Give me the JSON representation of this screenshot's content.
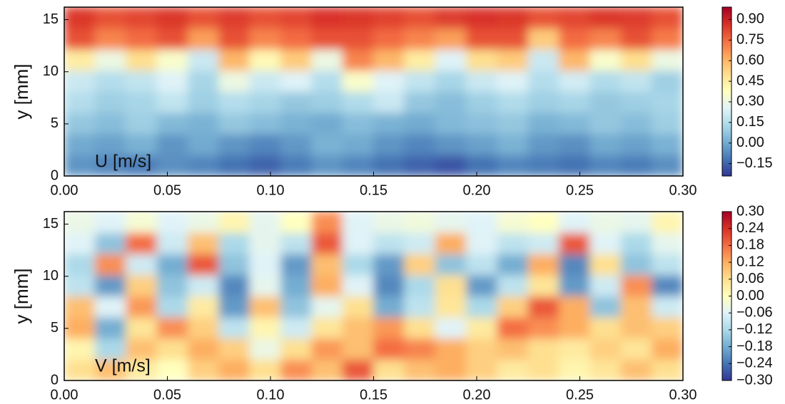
{
  "chart_data": [
    {
      "type": "heatmap",
      "ylabel": "y [mm]",
      "annotation": "U [m/s]",
      "colormap": "RdYlBu_r",
      "origin": "lower",
      "xlim": [
        0,
        0.3
      ],
      "ylim": [
        0,
        16.2
      ],
      "xticks": [
        {
          "value": 0,
          "label": "0.00"
        },
        {
          "value": 0.05,
          "label": "0.05"
        },
        {
          "value": 0.1,
          "label": "0.10"
        },
        {
          "value": 0.15,
          "label": "0.15"
        },
        {
          "value": 0.2,
          "label": "0.20"
        },
        {
          "value": 0.25,
          "label": "0.25"
        },
        {
          "value": 0.3,
          "label": "0.30"
        }
      ],
      "yticks": [
        0,
        5,
        10,
        15
      ],
      "clim": [
        -0.24,
        0.99
      ],
      "cticks": [
        {
          "value": 0.9,
          "label": "0.90"
        },
        {
          "value": 0.75,
          "label": "0.75"
        },
        {
          "value": 0.6,
          "label": "0.60"
        },
        {
          "value": 0.45,
          "label": "0.45"
        },
        {
          "value": 0.3,
          "label": "0.30"
        },
        {
          "value": 0.15,
          "label": "0.15"
        },
        {
          "value": 0,
          "label": "0.00"
        },
        {
          "value": -0.15,
          "label": "−0.15"
        }
      ],
      "z": [
        [
          -0.05,
          -0.08,
          -0.1,
          -0.06,
          -0.08,
          -0.12,
          -0.15,
          -0.1,
          -0.05,
          -0.08,
          -0.12,
          -0.15,
          -0.18,
          -0.12,
          -0.08,
          -0.1,
          -0.12,
          -0.08,
          -0.1,
          -0.06
        ],
        [
          0.0,
          -0.02,
          0.02,
          -0.05,
          0.0,
          -0.05,
          -0.08,
          -0.04,
          0.02,
          0.0,
          -0.05,
          -0.08,
          -0.05,
          -0.02,
          0.02,
          -0.04,
          -0.06,
          0.0,
          -0.02,
          0.02
        ],
        [
          0.08,
          0.05,
          0.1,
          0.04,
          0.02,
          0.08,
          0.05,
          0.02,
          0.0,
          0.05,
          0.02,
          0.0,
          0.04,
          0.06,
          0.08,
          0.02,
          0.04,
          0.08,
          0.05,
          0.1
        ],
        [
          0.15,
          0.1,
          0.12,
          0.18,
          0.1,
          0.15,
          0.12,
          0.08,
          0.1,
          0.14,
          0.2,
          0.08,
          0.05,
          0.1,
          0.14,
          0.1,
          0.12,
          0.08,
          0.1,
          0.12
        ],
        [
          0.2,
          0.15,
          0.18,
          0.25,
          0.12,
          0.3,
          0.2,
          0.25,
          0.15,
          0.35,
          0.25,
          0.18,
          0.12,
          0.2,
          0.25,
          0.15,
          0.22,
          0.14,
          0.18,
          0.1
        ],
        [
          0.45,
          0.3,
          0.5,
          0.35,
          0.2,
          0.6,
          0.4,
          0.55,
          0.3,
          0.7,
          0.6,
          0.45,
          0.25,
          0.5,
          0.55,
          0.2,
          0.6,
          0.35,
          0.5,
          0.3
        ],
        [
          0.8,
          0.7,
          0.75,
          0.8,
          0.65,
          0.8,
          0.7,
          0.75,
          0.8,
          0.8,
          0.75,
          0.7,
          0.65,
          0.8,
          0.8,
          0.55,
          0.75,
          0.7,
          0.8,
          0.72
        ],
        [
          0.85,
          0.8,
          0.82,
          0.85,
          0.8,
          0.84,
          0.8,
          0.82,
          0.86,
          0.85,
          0.83,
          0.8,
          0.84,
          0.86,
          0.85,
          0.8,
          0.82,
          0.85,
          0.84,
          0.8
        ]
      ]
    },
    {
      "type": "heatmap",
      "ylabel": "y [mm]",
      "annotation": "V [m/s]",
      "colormap": "RdYlBu_r",
      "origin": "lower",
      "xlim": [
        0,
        0.3
      ],
      "ylim": [
        0,
        16.2
      ],
      "xticks": [
        {
          "value": 0,
          "label": "0.00"
        },
        {
          "value": 0.05,
          "label": "0.05"
        },
        {
          "value": 0.1,
          "label": "0.10"
        },
        {
          "value": 0.15,
          "label": "0.15"
        },
        {
          "value": 0.2,
          "label": "0.20"
        },
        {
          "value": 0.25,
          "label": "0.25"
        },
        {
          "value": 0.3,
          "label": "0.30"
        }
      ],
      "yticks": [
        0,
        5,
        10,
        15
      ],
      "clim": [
        -0.3,
        0.3
      ],
      "cticks": [
        {
          "value": 0.3,
          "label": "0.30"
        },
        {
          "value": 0.24,
          "label": "0.24"
        },
        {
          "value": 0.18,
          "label": "0.18"
        },
        {
          "value": 0.12,
          "label": "0.12"
        },
        {
          "value": 0.06,
          "label": "0.06"
        },
        {
          "value": 0,
          "label": "0.00"
        },
        {
          "value": -0.06,
          "label": "−0.06"
        },
        {
          "value": -0.12,
          "label": "−0.12"
        },
        {
          "value": -0.18,
          "label": "−0.18"
        },
        {
          "value": -0.24,
          "label": "−0.24"
        },
        {
          "value": -0.3,
          "label": "−0.30"
        }
      ],
      "z": [
        [
          0.06,
          0.1,
          0.04,
          0.0,
          0.08,
          0.12,
          0.06,
          0.15,
          0.1,
          0.2,
          0.06,
          0.1,
          0.12,
          0.08,
          0.04,
          0.06,
          0.02,
          0.05,
          0.1,
          0.06
        ],
        [
          0.02,
          -0.12,
          0.1,
          0.06,
          0.12,
          0.08,
          -0.04,
          0.06,
          0.14,
          0.1,
          0.18,
          0.16,
          0.12,
          0.08,
          0.1,
          0.06,
          0.04,
          0.08,
          0.05,
          0.12
        ],
        [
          0.12,
          -0.18,
          0.05,
          0.15,
          0.08,
          -0.1,
          0.02,
          -0.08,
          0.05,
          0.1,
          0.14,
          0.06,
          -0.06,
          0.04,
          0.18,
          0.15,
          0.12,
          0.06,
          0.1,
          0.08
        ],
        [
          0.1,
          -0.06,
          0.14,
          -0.12,
          0.04,
          -0.2,
          0.1,
          -0.15,
          -0.05,
          0.06,
          -0.18,
          -0.1,
          0.05,
          -0.12,
          0.08,
          0.2,
          0.12,
          -0.15,
          0.1,
          -0.08
        ],
        [
          -0.1,
          -0.2,
          0.08,
          -0.15,
          -0.08,
          -0.22,
          -0.05,
          -0.18,
          0.12,
          -0.06,
          -0.22,
          -0.12,
          0.06,
          -0.2,
          -0.1,
          0.05,
          -0.2,
          -0.08,
          0.15,
          -0.22
        ],
        [
          -0.12,
          0.15,
          -0.08,
          -0.18,
          0.2,
          -0.15,
          -0.06,
          -0.2,
          0.1,
          -0.12,
          -0.2,
          0.08,
          -0.15,
          -0.1,
          -0.18,
          0.12,
          -0.22,
          0.06,
          -0.15,
          -0.1
        ],
        [
          -0.06,
          -0.15,
          0.18,
          -0.08,
          0.1,
          -0.12,
          -0.05,
          -0.1,
          0.2,
          -0.06,
          -0.1,
          -0.08,
          0.12,
          -0.06,
          -0.1,
          -0.08,
          0.2,
          -0.06,
          -0.12,
          -0.05
        ],
        [
          -0.04,
          -0.06,
          -0.02,
          -0.06,
          -0.04,
          0.02,
          -0.05,
          0.0,
          0.15,
          -0.06,
          -0.04,
          -0.03,
          -0.05,
          -0.06,
          -0.02,
          0.0,
          -0.06,
          -0.04,
          -0.05,
          0.02
        ]
      ]
    }
  ]
}
